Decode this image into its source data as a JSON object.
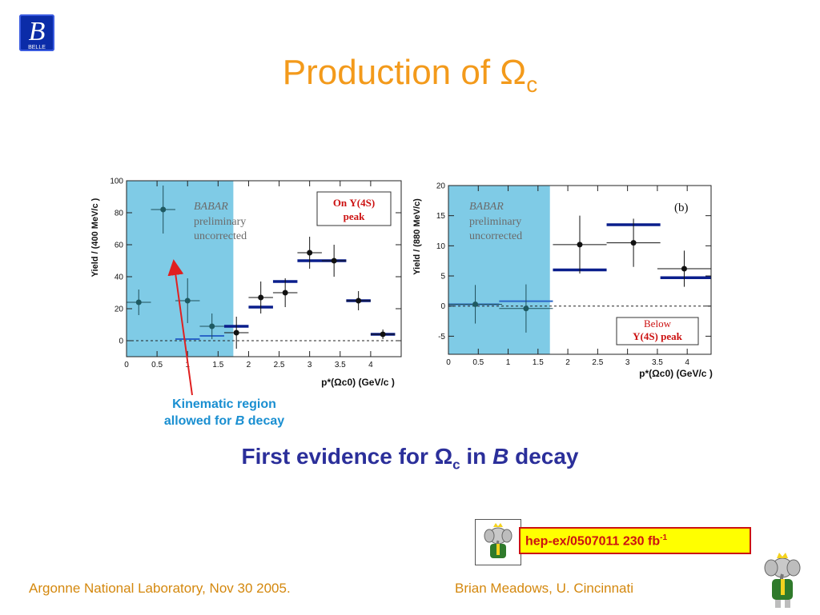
{
  "header": {
    "logo_text": "BELLE",
    "title_prefix": "Production of ",
    "title_symbol": "Ω",
    "title_sub": "c"
  },
  "annotation": {
    "line1": "Kinematic region",
    "line2_prefix": "allowed for ",
    "line2_italic": "B",
    "line2_suffix": " decay"
  },
  "headline": {
    "prefix": "First evidence for ",
    "symbol": "Ω",
    "sub": "c",
    "mid": " in ",
    "italic": "B",
    "suffix": " decay"
  },
  "reference": {
    "text": "hep-ex/0507011   230 fb",
    "sup": "-1"
  },
  "footer": {
    "left": "Argonne National Laboratory, Nov 30 2005.",
    "right": "Brian Meadows, U. Cincinnati"
  },
  "colors": {
    "title": "#f39a1b",
    "headline": "#2b2f9a",
    "kinematic_region": "#7fcbe6",
    "data_line": "#0a1e8c",
    "annotation_text": "#1a8fd1",
    "annotation_arrow": "#e02020",
    "label_red": "#cc1111"
  },
  "chart_data": [
    {
      "type": "scatter",
      "panel_label": "",
      "ylabel": "Yield / (400 MeV/c )",
      "xlabel": "p*(Ωc0)   (GeV/c )",
      "xlim": [
        0,
        4.5
      ],
      "ylim": [
        -10,
        100
      ],
      "xticks": [
        0,
        0.5,
        1,
        1.5,
        2,
        2.5,
        3,
        3.5,
        4
      ],
      "yticks": [
        0,
        20,
        40,
        60,
        80,
        100
      ],
      "shaded_region": [
        0,
        1.75
      ],
      "watermark": [
        "BABAR",
        "preliminary",
        "uncorrected"
      ],
      "legend": [
        "On Υ(4S)",
        "peak"
      ],
      "points": [
        {
          "x": 0.2,
          "y": 24,
          "xerr": 0.2,
          "yerr": 8
        },
        {
          "x": 0.6,
          "y": 82,
          "xerr": 0.2,
          "yerr": 15
        },
        {
          "x": 1.0,
          "y": 25,
          "xerr": 0.2,
          "yerr": 14
        },
        {
          "x": 1.4,
          "y": 9,
          "xerr": 0.2,
          "yerr": 8
        },
        {
          "x": 1.8,
          "y": 5,
          "xerr": 0.2,
          "yerr": 10
        },
        {
          "x": 2.2,
          "y": 27,
          "xerr": 0.2,
          "yerr": 10
        },
        {
          "x": 2.6,
          "y": 30,
          "xerr": 0.2,
          "yerr": 9
        },
        {
          "x": 3.0,
          "y": 55,
          "xerr": 0.2,
          "yerr": 10
        },
        {
          "x": 3.4,
          "y": 50,
          "xerr": 0.2,
          "yerr": 10
        },
        {
          "x": 3.8,
          "y": 25,
          "xerr": 0.2,
          "yerr": 6
        },
        {
          "x": 4.2,
          "y": 4,
          "xerr": 0.2,
          "yerr": 3
        }
      ],
      "expectation": [
        {
          "x0": 0.8,
          "x1": 1.2,
          "y": 1
        },
        {
          "x0": 1.2,
          "x1": 1.6,
          "y": 3
        },
        {
          "x0": 1.6,
          "x1": 2.0,
          "y": 9
        },
        {
          "x0": 2.0,
          "x1": 2.4,
          "y": 21
        },
        {
          "x0": 2.4,
          "x1": 2.8,
          "y": 37
        },
        {
          "x0": 2.8,
          "x1": 3.6,
          "y": 50
        },
        {
          "x0": 3.6,
          "x1": 4.0,
          "y": 25
        },
        {
          "x0": 4.0,
          "x1": 4.4,
          "y": 4
        }
      ]
    },
    {
      "type": "scatter",
      "panel_label": "(b)",
      "ylabel": "Yield / (880 MeV/c)",
      "xlabel": "p*(Ωc0)   (GeV/c )",
      "xlim": [
        0,
        4.4
      ],
      "ylim": [
        -8,
        20
      ],
      "xticks": [
        0,
        0.5,
        1,
        1.5,
        2,
        2.5,
        3,
        3.5,
        4
      ],
      "yticks": [
        -5,
        0,
        5,
        10,
        15,
        20
      ],
      "shaded_region": [
        0,
        1.7
      ],
      "watermark": [
        "BABAR",
        "preliminary",
        "uncorrected"
      ],
      "legend": [
        "Below",
        "Υ(4S)  peak"
      ],
      "points": [
        {
          "x": 0.45,
          "y": 0.3,
          "xerr": 0.45,
          "yerr": 3.2
        },
        {
          "x": 1.3,
          "y": -0.4,
          "xerr": 0.45,
          "yerr": 4.0
        },
        {
          "x": 2.2,
          "y": 10.2,
          "xerr": 0.45,
          "yerr": 4.8
        },
        {
          "x": 3.1,
          "y": 10.5,
          "xerr": 0.45,
          "yerr": 4.0
        },
        {
          "x": 3.95,
          "y": 6.2,
          "xerr": 0.45,
          "yerr": 3.0
        }
      ],
      "expectation": [
        {
          "x0": 0,
          "x1": 0.85,
          "y": 0.3
        },
        {
          "x0": 0.85,
          "x1": 1.75,
          "y": 0.8
        },
        {
          "x0": 1.75,
          "x1": 2.65,
          "y": 6.0
        },
        {
          "x0": 2.65,
          "x1": 3.55,
          "y": 13.5
        },
        {
          "x0": 3.55,
          "x1": 4.4,
          "y": 4.7
        }
      ]
    }
  ]
}
